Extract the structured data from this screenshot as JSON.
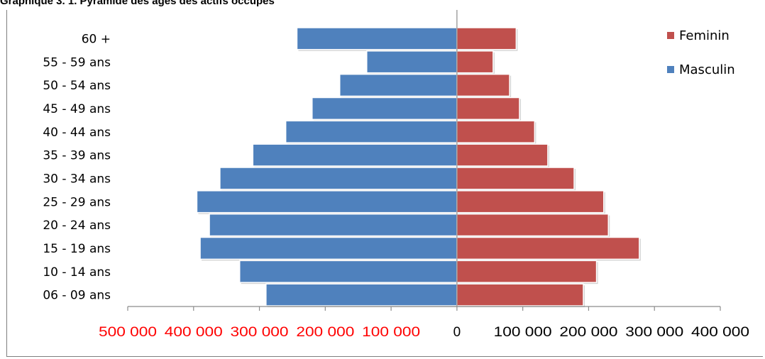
{
  "caption": "Graphique 3. 1. Pyramide des âges des actifs occupés",
  "chart_data": {
    "type": "bar",
    "orientation": "horizontal",
    "layout": "population-pyramid",
    "title": "",
    "categories": [
      "60 +",
      "55 - 59 ans",
      "50 - 54 ans",
      "45 - 49 ans",
      "40 - 44 ans",
      "35 - 39 ans",
      "30 - 34 ans",
      "25 - 29 ans",
      "20 - 24 ans",
      "15 - 19 ans",
      "10 - 14 ans",
      "06 - 09 ans"
    ],
    "series": [
      {
        "name": "Feminin",
        "side": "right",
        "color": "#c0504d",
        "values": [
          90000,
          55000,
          80000,
          95000,
          118000,
          138000,
          178000,
          223000,
          230000,
          277000,
          212000,
          192000
        ]
      },
      {
        "name": "Masculin",
        "side": "left",
        "color": "#4f81bd",
        "values": [
          243000,
          137000,
          178000,
          220000,
          260000,
          310000,
          360000,
          395000,
          376000,
          390000,
          330000,
          290000
        ]
      }
    ],
    "xlim": [
      -500000,
      400000
    ],
    "x_ticks": [
      -500000,
      -400000,
      -300000,
      -200000,
      -100000,
      0,
      100000,
      200000,
      300000,
      400000
    ],
    "x_tick_labels": [
      "500 000",
      "400 000",
      "300 000",
      "200 000",
      "100 000",
      "0",
      "100 000",
      "200 000",
      "300 000",
      "400 000"
    ],
    "negative_tick_color": "#ff0000",
    "positive_tick_color": "#000000",
    "legend_position": "top-right",
    "grid": false
  }
}
